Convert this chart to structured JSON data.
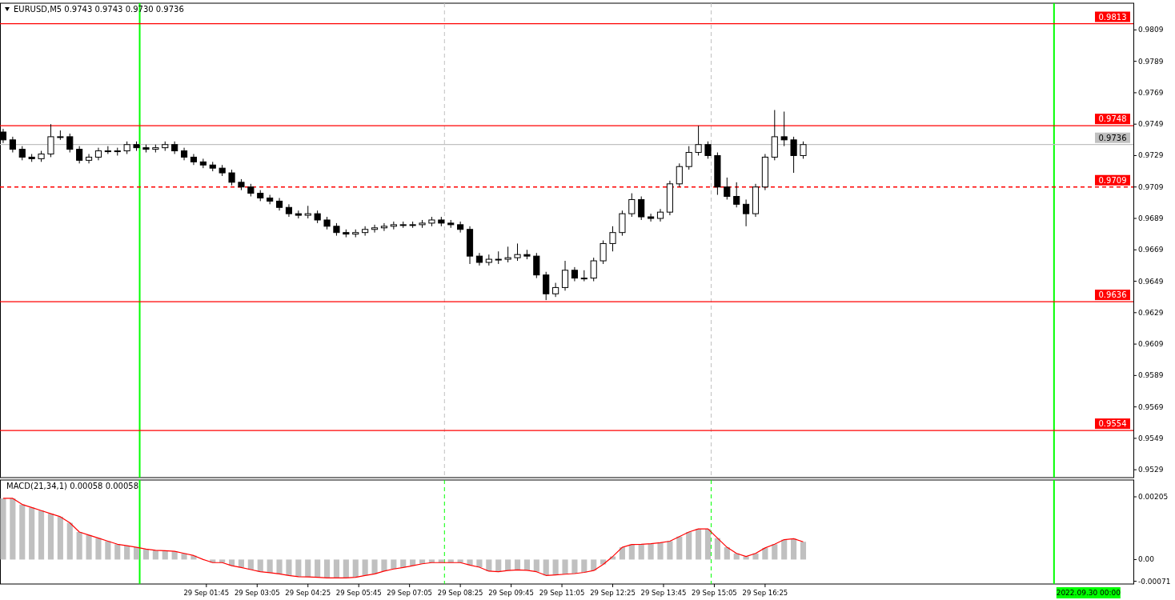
{
  "chart_data": [
    {
      "type": "candlestick",
      "title": "EURUSD,M5 0.9743 0.9743 0.9730 0.9736",
      "tick_labels": "y",
      "x": [
        "2022-09-28T20:25",
        "2022-09-28T20:40",
        "2022-09-28T20:55",
        "2022-09-28T21:10",
        "2022-09-28T21:25",
        "2022-09-28T21:40",
        "2022-09-28T21:55",
        "2022-09-28T22:10",
        "2022-09-28T22:25",
        "2022-09-28T22:40",
        "2022-09-28T22:55",
        "2022-09-28T23:10",
        "2022-09-28T23:25",
        "2022-09-28T23:40",
        "2022-09-28T23:55",
        "2022-09-29T00:10",
        "2022-09-29T00:25",
        "2022-09-29T00:40",
        "2022-09-29T00:55",
        "2022-09-29T01:10",
        "2022-09-29T01:25",
        "2022-09-29T01:40",
        "2022-09-29T01:55",
        "2022-09-29T02:10",
        "2022-09-29T02:25",
        "2022-09-29T02:40",
        "2022-09-29T02:55",
        "2022-09-29T03:10",
        "2022-09-29T03:25",
        "2022-09-29T03:40",
        "2022-09-29T03:55",
        "2022-09-29T04:10",
        "2022-09-29T04:25",
        "2022-09-29T04:40",
        "2022-09-29T04:55",
        "2022-09-29T05:10",
        "2022-09-29T05:25",
        "2022-09-29T05:40",
        "2022-09-29T05:55",
        "2022-09-29T06:10",
        "2022-09-29T06:25",
        "2022-09-29T06:40",
        "2022-09-29T06:55",
        "2022-09-29T07:10",
        "2022-09-29T07:25",
        "2022-09-29T07:40",
        "2022-09-29T07:55",
        "2022-09-29T08:10",
        "2022-09-29T08:25",
        "2022-09-29T08:40",
        "2022-09-29T08:55",
        "2022-09-29T09:10",
        "2022-09-29T09:25",
        "2022-09-29T09:40",
        "2022-09-29T09:55",
        "2022-09-29T10:10",
        "2022-09-29T10:25",
        "2022-09-29T10:40",
        "2022-09-29T10:55",
        "2022-09-29T11:10",
        "2022-09-29T11:25",
        "2022-09-29T11:40",
        "2022-09-29T11:55",
        "2022-09-29T12:10",
        "2022-09-29T12:25",
        "2022-09-29T12:40",
        "2022-09-29T12:55",
        "2022-09-29T13:10",
        "2022-09-29T13:25",
        "2022-09-29T13:40",
        "2022-09-29T13:55",
        "2022-09-29T14:10",
        "2022-09-29T14:25",
        "2022-09-29T14:40",
        "2022-09-29T14:55",
        "2022-09-29T15:10",
        "2022-09-29T15:25",
        "2022-09-29T15:40",
        "2022-09-29T15:55",
        "2022-09-29T16:10",
        "2022-09-29T16:25",
        "2022-09-29T16:40",
        "2022-09-29T16:55",
        "2022-09-29T17:10",
        "2022-09-29T17:25"
      ],
      "series": [
        {
          "color": "#000000",
          "ohlc": [
            [
              0.9744,
              0.9746,
              0.9737,
              0.9739
            ],
            [
              0.9739,
              0.9741,
              0.9731,
              0.9733
            ],
            [
              0.9733,
              0.9735,
              0.9726,
              0.9728
            ],
            [
              0.9728,
              0.973,
              0.9725,
              0.9727
            ],
            [
              0.9727,
              0.9732,
              0.9725,
              0.973
            ],
            [
              0.973,
              0.9749,
              0.9728,
              0.9741
            ],
            [
              0.9741,
              0.9745,
              0.9739,
              0.9741
            ],
            [
              0.9741,
              0.9743,
              0.9731,
              0.9733
            ],
            [
              0.9733,
              0.9735,
              0.9724,
              0.9726
            ],
            [
              0.9726,
              0.973,
              0.9724,
              0.9728
            ],
            [
              0.9728,
              0.9734,
              0.9726,
              0.9732
            ],
            [
              0.9732,
              0.9735,
              0.973,
              0.9732
            ],
            [
              0.9732,
              0.9734,
              0.9729,
              0.9732
            ],
            [
              0.9732,
              0.9738,
              0.973,
              0.9736
            ],
            [
              0.9736,
              0.9738,
              0.9732,
              0.9734
            ],
            [
              0.9734,
              0.9736,
              0.9731,
              0.9733
            ],
            [
              0.9733,
              0.9736,
              0.9731,
              0.9734
            ],
            [
              0.9734,
              0.9738,
              0.9732,
              0.9736
            ],
            [
              0.9736,
              0.9738,
              0.973,
              0.9732
            ],
            [
              0.9732,
              0.9734,
              0.9726,
              0.9728
            ],
            [
              0.9728,
              0.973,
              0.9723,
              0.9725
            ],
            [
              0.9725,
              0.9727,
              0.9721,
              0.9723
            ],
            [
              0.9723,
              0.9725,
              0.9719,
              0.9721
            ],
            [
              0.9721,
              0.9723,
              0.9716,
              0.9718
            ],
            [
              0.9718,
              0.972,
              0.971,
              0.9712
            ],
            [
              0.9712,
              0.9714,
              0.9707,
              0.9709
            ],
            [
              0.9709,
              0.9711,
              0.9703,
              0.9705
            ],
            [
              0.9705,
              0.9707,
              0.97,
              0.9702
            ],
            [
              0.9702,
              0.9704,
              0.9698,
              0.97
            ],
            [
              0.97,
              0.9702,
              0.9694,
              0.9696
            ],
            [
              0.9696,
              0.9698,
              0.969,
              0.9692
            ],
            [
              0.9692,
              0.9694,
              0.9689,
              0.9691
            ],
            [
              0.9691,
              0.9697,
              0.9689,
              0.9692
            ],
            [
              0.9692,
              0.9694,
              0.9686,
              0.9688
            ],
            [
              0.9688,
              0.969,
              0.9682,
              0.9684
            ],
            [
              0.9684,
              0.9686,
              0.9678,
              0.968
            ],
            [
              0.968,
              0.9682,
              0.9677,
              0.9679
            ],
            [
              0.9679,
              0.9682,
              0.9677,
              0.968
            ],
            [
              0.968,
              0.9684,
              0.9678,
              0.9682
            ],
            [
              0.9682,
              0.9685,
              0.968,
              0.9683
            ],
            [
              0.9683,
              0.9686,
              0.9681,
              0.9684
            ],
            [
              0.9684,
              0.9687,
              0.9682,
              0.9685
            ],
            [
              0.9685,
              0.9687,
              0.9683,
              0.9685
            ],
            [
              0.9685,
              0.9687,
              0.9683,
              0.9685
            ],
            [
              0.9685,
              0.9688,
              0.9683,
              0.9686
            ],
            [
              0.9686,
              0.969,
              0.9684,
              0.9688
            ],
            [
              0.9688,
              0.969,
              0.9684,
              0.9686
            ],
            [
              0.9686,
              0.9688,
              0.9683,
              0.9685
            ],
            [
              0.9685,
              0.9687,
              0.968,
              0.9682
            ],
            [
              0.9682,
              0.9684,
              0.966,
              0.9665
            ],
            [
              0.9665,
              0.9667,
              0.9659,
              0.9661
            ],
            [
              0.9661,
              0.9666,
              0.9659,
              0.9663
            ],
            [
              0.9663,
              0.9668,
              0.966,
              0.9663
            ],
            [
              0.9663,
              0.9671,
              0.9661,
              0.9664
            ],
            [
              0.9664,
              0.9673,
              0.9662,
              0.9666
            ],
            [
              0.9666,
              0.9669,
              0.9663,
              0.9665
            ],
            [
              0.9665,
              0.9667,
              0.9651,
              0.9653
            ],
            [
              0.9653,
              0.9655,
              0.9637,
              0.9641
            ],
            [
              0.9641,
              0.9648,
              0.9639,
              0.9645
            ],
            [
              0.9645,
              0.9662,
              0.9643,
              0.9656
            ],
            [
              0.9656,
              0.9658,
              0.9649,
              0.9651
            ],
            [
              0.9651,
              0.9656,
              0.9649,
              0.9651
            ],
            [
              0.9651,
              0.9664,
              0.9649,
              0.9662
            ],
            [
              0.9662,
              0.9675,
              0.966,
              0.9673
            ],
            [
              0.9673,
              0.9684,
              0.9668,
              0.968
            ],
            [
              0.968,
              0.9694,
              0.9678,
              0.9692
            ],
            [
              0.9692,
              0.9705,
              0.969,
              0.9701
            ],
            [
              0.9701,
              0.9703,
              0.9688,
              0.969
            ],
            [
              0.969,
              0.9692,
              0.9687,
              0.9689
            ],
            [
              0.9689,
              0.9695,
              0.9687,
              0.9693
            ],
            [
              0.9693,
              0.9713,
              0.9691,
              0.9711
            ],
            [
              0.9711,
              0.9724,
              0.9709,
              0.9722
            ],
            [
              0.9722,
              0.9735,
              0.972,
              0.9731
            ],
            [
              0.9731,
              0.9748,
              0.9729,
              0.9736
            ],
            [
              0.9736,
              0.9738,
              0.9727,
              0.9729
            ],
            [
              0.9729,
              0.9731,
              0.9704,
              0.9709
            ],
            [
              0.9709,
              0.9715,
              0.9701,
              0.9703
            ],
            [
              0.9703,
              0.9712,
              0.9696,
              0.9698
            ],
            [
              0.9698,
              0.9701,
              0.9684,
              0.9692
            ],
            [
              0.9692,
              0.9711,
              0.969,
              0.9709
            ],
            [
              0.9709,
              0.973,
              0.9707,
              0.9728
            ],
            [
              0.9728,
              0.9758,
              0.9726,
              0.9741
            ],
            [
              0.9741,
              0.9757,
              0.9735,
              0.9739
            ],
            [
              0.9739,
              0.9741,
              0.9718,
              0.9729
            ],
            [
              0.9729,
              0.9738,
              0.9727,
              0.9736
            ]
          ]
        }
      ],
      "xlim": [
        "2022-09-28T20:20",
        "2022-09-30T02:05"
      ],
      "ylim": [
        0.9524,
        0.9826
      ],
      "yticks": [
        0.9809,
        0.9789,
        0.9769,
        0.9749,
        0.9729,
        0.9709,
        0.9689,
        0.9669,
        0.9649,
        0.9629,
        0.9609,
        0.9589,
        0.9569,
        0.9549,
        0.9529
      ],
      "ref_lines": [
        {
          "axis": "y",
          "value": 0.9813,
          "label": "0.9813",
          "color": "#ff0000"
        },
        {
          "axis": "y",
          "value": 0.9748,
          "label": "0.9748",
          "color": "#ff0000"
        },
        {
          "axis": "y",
          "value": 0.9736,
          "label": "0.9736",
          "color": "#c0c0c0"
        },
        {
          "axis": "y",
          "value": 0.9709,
          "label": "0.9709",
          "color": "#ff0000",
          "line_style": "dashed"
        },
        {
          "axis": "y",
          "value": 0.9636,
          "label": "0.9636",
          "color": "#ff0000"
        },
        {
          "axis": "y",
          "value": 0.9554,
          "label": "0.9554",
          "color": "#ff0000"
        },
        {
          "axis": "x",
          "value": "2022-09-29T00:00",
          "color": "#00ff00"
        },
        {
          "axis": "x",
          "value": "2022-09-30T00:00",
          "color": "#00ff00"
        },
        {
          "axis": "x",
          "value": "2022-09-29T08:00",
          "color": "#c0c0c0",
          "line_style": "dashed"
        },
        {
          "axis": "x",
          "value": "2022-09-29T15:00",
          "color": "#c0c0c0",
          "line_style": "dashed"
        }
      ]
    },
    {
      "type": "bar",
      "title": "MACD(21,34,1) 0.00058 0.00058",
      "x": [
        "2022-09-28T20:25",
        "2022-09-28T20:40",
        "2022-09-28T20:55",
        "2022-09-28T21:10",
        "2022-09-28T21:25",
        "2022-09-28T21:40",
        "2022-09-28T21:55",
        "2022-09-28T22:10",
        "2022-09-28T22:25",
        "2022-09-28T22:40",
        "2022-09-28T22:55",
        "2022-09-28T23:10",
        "2022-09-28T23:25",
        "2022-09-28T23:40",
        "2022-09-28T23:55",
        "2022-09-29T00:10",
        "2022-09-29T00:25",
        "2022-09-29T00:40",
        "2022-09-29T00:55",
        "2022-09-29T01:10",
        "2022-09-29T01:25",
        "2022-09-29T01:40",
        "2022-09-29T01:55",
        "2022-09-29T02:10",
        "2022-09-29T02:25",
        "2022-09-29T02:40",
        "2022-09-29T02:55",
        "2022-09-29T03:10",
        "2022-09-29T03:25",
        "2022-09-29T03:40",
        "2022-09-29T03:55",
        "2022-09-29T04:10",
        "2022-09-29T04:25",
        "2022-09-29T04:40",
        "2022-09-29T04:55",
        "2022-09-29T05:10",
        "2022-09-29T05:25",
        "2022-09-29T05:40",
        "2022-09-29T05:55",
        "2022-09-29T06:10",
        "2022-09-29T06:25",
        "2022-09-29T06:40",
        "2022-09-29T06:55",
        "2022-09-29T07:10",
        "2022-09-29T07:25",
        "2022-09-29T07:40",
        "2022-09-29T07:55",
        "2022-09-29T08:10",
        "2022-09-29T08:25",
        "2022-09-29T08:40",
        "2022-09-29T08:55",
        "2022-09-29T09:10",
        "2022-09-29T09:25",
        "2022-09-29T09:40",
        "2022-09-29T09:55",
        "2022-09-29T10:10",
        "2022-09-29T10:25",
        "2022-09-29T10:40",
        "2022-09-29T10:55",
        "2022-09-29T11:10",
        "2022-09-29T11:25",
        "2022-09-29T11:40",
        "2022-09-29T11:55",
        "2022-09-29T12:10",
        "2022-09-29T12:25",
        "2022-09-29T12:40",
        "2022-09-29T12:55",
        "2022-09-29T13:10",
        "2022-09-29T13:25",
        "2022-09-29T13:40",
        "2022-09-29T13:55",
        "2022-09-29T14:10",
        "2022-09-29T14:25",
        "2022-09-29T14:40",
        "2022-09-29T14:55",
        "2022-09-29T15:10",
        "2022-09-29T15:25",
        "2022-09-29T15:40",
        "2022-09-29T15:55",
        "2022-09-29T16:10",
        "2022-09-29T16:25",
        "2022-09-29T16:40",
        "2022-09-29T16:55",
        "2022-09-29T17:10",
        "2022-09-29T17:25"
      ],
      "series": [
        {
          "color": "#c0c0c0",
          "values": [
            0.002,
            0.002,
            0.0018,
            0.0017,
            0.0016,
            0.0015,
            0.0014,
            0.0012,
            0.0009,
            0.0008,
            0.0007,
            0.0006,
            0.0005,
            0.00045,
            0.0004,
            0.00034,
            0.0003,
            0.00029,
            0.00027,
            0.0002,
            0.00013,
            0,
            -0.0001,
            -0.0001,
            -0.0002,
            -0.00026,
            -0.00033,
            -0.0004,
            -0.00043,
            -0.00047,
            -0.00052,
            -0.00056,
            -0.00057,
            -0.00058,
            -0.0006,
            -0.0006,
            -0.0006,
            -0.00058,
            -0.00052,
            -0.00047,
            -0.00038,
            -0.00031,
            -0.00026,
            -0.0002,
            -0.00014,
            -0.0001,
            -0.0001,
            -0.0001,
            -0.0001,
            -0.00018,
            -0.00025,
            -0.00038,
            -0.0004,
            -0.00036,
            -0.00034,
            -0.00035,
            -0.0004,
            -0.00052,
            -0.0005,
            -0.00048,
            -0.00046,
            -0.00042,
            -0.00036,
            -0.00016,
            0.0001,
            0.0004,
            0.00049,
            0.0005,
            0.00052,
            0.00055,
            0.0006,
            0.00075,
            0.0009,
            0.001,
            0.001,
            0.0007,
            0.0004,
            0.0002,
            0.0001,
            0.0002,
            0.00038,
            0.0005,
            0.00065,
            0.00068,
            0.00058
          ]
        },
        {
          "type": "line",
          "color": "#ff0000",
          "values": [
            0.002,
            0.002,
            0.0018,
            0.0017,
            0.0016,
            0.0015,
            0.0014,
            0.0012,
            0.0009,
            0.0008,
            0.0007,
            0.0006,
            0.0005,
            0.00045,
            0.0004,
            0.00034,
            0.0003,
            0.00029,
            0.00027,
            0.0002,
            0.00013,
            0,
            -0.0001,
            -0.0001,
            -0.0002,
            -0.00026,
            -0.00033,
            -0.0004,
            -0.00043,
            -0.00047,
            -0.00052,
            -0.00056,
            -0.00057,
            -0.00058,
            -0.0006,
            -0.0006,
            -0.0006,
            -0.00058,
            -0.00052,
            -0.00047,
            -0.00038,
            -0.00031,
            -0.00026,
            -0.0002,
            -0.00014,
            -0.0001,
            -0.0001,
            -0.0001,
            -0.0001,
            -0.00018,
            -0.00025,
            -0.00038,
            -0.0004,
            -0.00036,
            -0.00034,
            -0.00035,
            -0.0004,
            -0.00052,
            -0.0005,
            -0.00048,
            -0.00046,
            -0.00042,
            -0.00036,
            -0.00016,
            0.0001,
            0.0004,
            0.00049,
            0.0005,
            0.00052,
            0.00055,
            0.0006,
            0.00075,
            0.0009,
            0.001,
            0.001,
            0.0007,
            0.0004,
            0.0002,
            0.0001,
            0.0002,
            0.00038,
            0.0005,
            0.00065,
            0.00068,
            0.00058
          ]
        }
      ],
      "xlim": [
        "2022-09-28T20:20",
        "2022-09-30T02:05"
      ],
      "ylim": [
        -0.0008,
        0.0026
      ],
      "yticks": [
        0.00205,
        {
          "value": 0,
          "label": "0.00"
        },
        -0.00071
      ],
      "xticks": [
        {
          "value": "2022-09-29T01:45",
          "label": "29 Sep 01:45"
        },
        {
          "value": "2022-09-29T03:05",
          "label": "29 Sep 03:05"
        },
        {
          "value": "2022-09-29T04:25",
          "label": "29 Sep 04:25"
        },
        {
          "value": "2022-09-29T05:45",
          "label": "29 Sep 05:45"
        },
        {
          "value": "2022-09-29T07:05",
          "label": "29 Sep 07:05"
        },
        {
          "value": "2022-09-29T08:25",
          "label": "29 Sep 08:25"
        },
        {
          "value": "2022-09-29T09:45",
          "label": "29 Sep 09:45"
        },
        {
          "value": "2022-09-29T11:05",
          "label": "29 Sep 11:05"
        },
        {
          "value": "2022-09-29T12:25",
          "label": "29 Sep 12:25"
        },
        {
          "value": "2022-09-29T13:45",
          "label": "29 Sep 13:45"
        },
        {
          "value": "2022-09-29T15:05",
          "label": "29 Sep 15:05"
        },
        {
          "value": "2022-09-29T16:25",
          "label": "29 Sep 16:25"
        }
      ],
      "ref_lines": [
        {
          "axis": "x",
          "value": "2022-09-29T00:00",
          "color": "#00ff00"
        },
        {
          "axis": "x",
          "value": "2022-09-30T00:00",
          "label": "2022.09.30 00:00",
          "color": "#00ff00"
        },
        {
          "axis": "x",
          "value": "2022-09-29T08:00",
          "color": "#00ff00",
          "line_style": "dashed"
        },
        {
          "axis": "x",
          "value": "2022-09-29T15:00",
          "color": "#00ff00",
          "line_style": "dashed"
        }
      ]
    }
  ]
}
